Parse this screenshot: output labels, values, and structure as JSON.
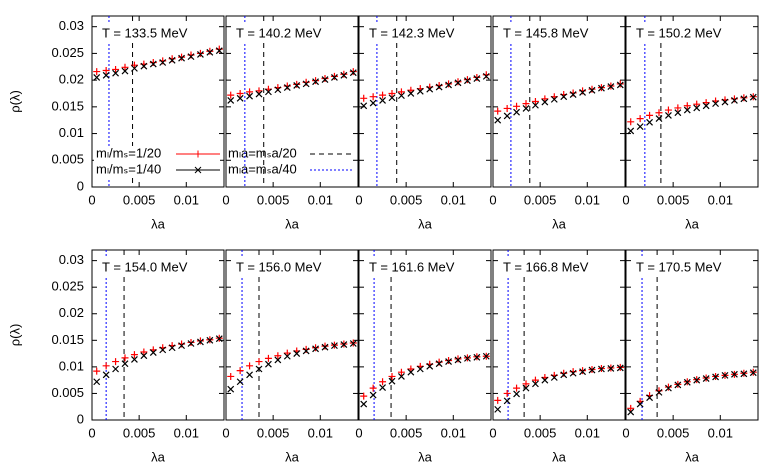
{
  "chart_data": [
    {
      "type": "scatter",
      "title": "T = 133.5 MeV",
      "xlabel": "λa",
      "ylabel": "ρ(λ)",
      "x": [
        0.0005,
        0.0015,
        0.0025,
        0.0035,
        0.0045,
        0.0055,
        0.0065,
        0.0075,
        0.0085,
        0.0095,
        0.0105,
        0.0115,
        0.0125,
        0.0135
      ],
      "xlim": [
        0,
        0.014
      ],
      "ylim": [
        0,
        0.032
      ],
      "xticks": [
        0,
        0.005,
        0.01
      ],
      "yticks": [
        0,
        0.005,
        0.01,
        0.015,
        0.02,
        0.025,
        0.03
      ],
      "series": [
        {
          "name": "mₗ/mₛ=1/20",
          "color": "#ff0000",
          "marker": "plus",
          "values": [
            0.0216,
            0.0218,
            0.022,
            0.0224,
            0.0228,
            0.023,
            0.0233,
            0.0236,
            0.024,
            0.0243,
            0.0247,
            0.025,
            0.0254,
            0.0258
          ]
        },
        {
          "name": "mₗ/mₛ=1/40",
          "color": "#000000",
          "marker": "cross",
          "values": [
            0.0205,
            0.0209,
            0.0213,
            0.0217,
            0.0222,
            0.0226,
            0.023,
            0.0233,
            0.0237,
            0.0241,
            0.0244,
            0.0248,
            0.0252,
            0.0255
          ]
        }
      ],
      "vlines": [
        {
          "name": "mₗa=mₛa/20",
          "color": "#000000",
          "dash": "dashed",
          "value": 0.0043
        },
        {
          "name": "mₗa=mₛa/40",
          "color": "#0000ff",
          "dash": "dotted",
          "value": 0.0018
        }
      ]
    },
    {
      "type": "scatter",
      "title": "T = 140.2 MeV",
      "xlabel": "λa",
      "x": [
        0.0005,
        0.0015,
        0.0025,
        0.0035,
        0.0045,
        0.0055,
        0.0065,
        0.0075,
        0.0085,
        0.0095,
        0.0105,
        0.0115,
        0.0125,
        0.0135
      ],
      "xlim": [
        0,
        0.014
      ],
      "ylim": [
        0,
        0.032
      ],
      "xticks": [
        0,
        0.005,
        0.01
      ],
      "yticks": [
        0,
        0.005,
        0.01,
        0.015,
        0.02,
        0.025,
        0.03
      ],
      "series": [
        {
          "color": "#ff0000",
          "marker": "plus",
          "values": [
            0.0172,
            0.0175,
            0.0178,
            0.018,
            0.0183,
            0.0186,
            0.0189,
            0.0192,
            0.0196,
            0.0199,
            0.0203,
            0.0207,
            0.0211,
            0.0216
          ]
        },
        {
          "color": "#000000",
          "marker": "cross",
          "values": [
            0.0162,
            0.0166,
            0.017,
            0.0174,
            0.0178,
            0.0182,
            0.0186,
            0.019,
            0.0193,
            0.0197,
            0.0201,
            0.0205,
            0.0209,
            0.0214
          ]
        }
      ],
      "vlines": [
        {
          "color": "#000000",
          "dash": "dashed",
          "value": 0.004
        },
        {
          "color": "#0000ff",
          "dash": "dotted",
          "value": 0.002
        }
      ]
    },
    {
      "type": "scatter",
      "title": "T = 142.3 MeV",
      "xlabel": "λa",
      "x": [
        0.0005,
        0.0015,
        0.0025,
        0.0035,
        0.0045,
        0.0055,
        0.0065,
        0.0075,
        0.0085,
        0.0095,
        0.0105,
        0.0115,
        0.0125,
        0.0135
      ],
      "xlim": [
        0,
        0.014
      ],
      "ylim": [
        0,
        0.032
      ],
      "xticks": [
        0,
        0.005,
        0.01
      ],
      "yticks": [
        0,
        0.005,
        0.01,
        0.015,
        0.02,
        0.025,
        0.03
      ],
      "series": [
        {
          "color": "#ff0000",
          "marker": "plus",
          "values": [
            0.0166,
            0.0169,
            0.0172,
            0.0175,
            0.0178,
            0.0181,
            0.0184,
            0.0187,
            0.019,
            0.0193,
            0.0197,
            0.0201,
            0.0205,
            0.021
          ]
        },
        {
          "color": "#000000",
          "marker": "cross",
          "values": [
            0.0152,
            0.0157,
            0.0162,
            0.0167,
            0.0171,
            0.0175,
            0.0179,
            0.0183,
            0.0187,
            0.0191,
            0.0195,
            0.0199,
            0.0203,
            0.0207
          ]
        }
      ],
      "vlines": [
        {
          "color": "#000000",
          "dash": "dashed",
          "value": 0.004
        },
        {
          "color": "#0000ff",
          "dash": "dotted",
          "value": 0.0019
        }
      ]
    },
    {
      "type": "scatter",
      "title": "T = 145.8 MeV",
      "xlabel": "λa",
      "x": [
        0.0005,
        0.0015,
        0.0025,
        0.0035,
        0.0045,
        0.0055,
        0.0065,
        0.0075,
        0.0085,
        0.0095,
        0.0105,
        0.0115,
        0.0125,
        0.0135
      ],
      "xlim": [
        0,
        0.014
      ],
      "ylim": [
        0,
        0.032
      ],
      "xticks": [
        0,
        0.005,
        0.01
      ],
      "yticks": [
        0,
        0.005,
        0.01,
        0.015,
        0.02,
        0.025,
        0.03
      ],
      "series": [
        {
          "color": "#ff0000",
          "marker": "plus",
          "values": [
            0.0142,
            0.0147,
            0.0151,
            0.0156,
            0.016,
            0.0165,
            0.0169,
            0.0173,
            0.0176,
            0.018,
            0.0183,
            0.0186,
            0.0189,
            0.0193
          ]
        },
        {
          "color": "#000000",
          "marker": "cross",
          "values": [
            0.0125,
            0.0133,
            0.014,
            0.0147,
            0.0153,
            0.0159,
            0.0164,
            0.0169,
            0.0173,
            0.0177,
            0.0181,
            0.0185,
            0.0188,
            0.0191
          ]
        }
      ],
      "vlines": [
        {
          "color": "#000000",
          "dash": "dashed",
          "value": 0.0039
        },
        {
          "color": "#0000ff",
          "dash": "dotted",
          "value": 0.0019
        }
      ]
    },
    {
      "type": "scatter",
      "title": "T = 150.2 MeV",
      "xlabel": "λa",
      "x": [
        0.0005,
        0.0015,
        0.0025,
        0.0035,
        0.0045,
        0.0055,
        0.0065,
        0.0075,
        0.0085,
        0.0095,
        0.0105,
        0.0115,
        0.0125,
        0.0135
      ],
      "xlim": [
        0,
        0.014
      ],
      "ylim": [
        0,
        0.032
      ],
      "xticks": [
        0,
        0.005,
        0.01
      ],
      "yticks": [
        0,
        0.005,
        0.01,
        0.015,
        0.02,
        0.025,
        0.03
      ],
      "series": [
        {
          "color": "#ff0000",
          "marker": "plus",
          "values": [
            0.0122,
            0.0128,
            0.0134,
            0.0139,
            0.0144,
            0.0148,
            0.0152,
            0.0155,
            0.0158,
            0.0161,
            0.0163,
            0.0165,
            0.0167,
            0.0169
          ]
        },
        {
          "color": "#000000",
          "marker": "cross",
          "values": [
            0.0105,
            0.0113,
            0.0121,
            0.0128,
            0.0134,
            0.0139,
            0.0144,
            0.0148,
            0.0152,
            0.0156,
            0.0159,
            0.0162,
            0.0165,
            0.0168
          ]
        }
      ],
      "vlines": [
        {
          "color": "#000000",
          "dash": "dashed",
          "value": 0.0037
        },
        {
          "color": "#0000ff",
          "dash": "dotted",
          "value": 0.002
        }
      ]
    },
    {
      "type": "scatter",
      "title": "T = 154.0 MeV",
      "xlabel": "λa",
      "ylabel": "ρ(λ)",
      "x": [
        0.0005,
        0.0015,
        0.0025,
        0.0035,
        0.0045,
        0.0055,
        0.0065,
        0.0075,
        0.0085,
        0.0095,
        0.0105,
        0.0115,
        0.0125,
        0.0135
      ],
      "xlim": [
        0,
        0.014
      ],
      "ylim": [
        0,
        0.032
      ],
      "xticks": [
        0,
        0.005,
        0.01
      ],
      "yticks": [
        0,
        0.005,
        0.01,
        0.015,
        0.02,
        0.025,
        0.03
      ],
      "series": [
        {
          "color": "#ff0000",
          "marker": "plus",
          "values": [
            0.0092,
            0.0102,
            0.011,
            0.0117,
            0.0123,
            0.0128,
            0.0132,
            0.0136,
            0.014,
            0.0143,
            0.0146,
            0.0149,
            0.0151,
            0.0154
          ]
        },
        {
          "color": "#000000",
          "marker": "cross",
          "values": [
            0.0072,
            0.0085,
            0.0096,
            0.0106,
            0.0114,
            0.0121,
            0.0127,
            0.0132,
            0.0136,
            0.014,
            0.0144,
            0.0147,
            0.015,
            0.0153
          ]
        }
      ],
      "vlines": [
        {
          "color": "#000000",
          "dash": "dashed",
          "value": 0.0034
        },
        {
          "color": "#0000ff",
          "dash": "dotted",
          "value": 0.0015
        }
      ]
    },
    {
      "type": "scatter",
      "title": "T = 156.0 MeV",
      "xlabel": "λa",
      "x": [
        0.0005,
        0.0015,
        0.0025,
        0.0035,
        0.0045,
        0.0055,
        0.0065,
        0.0075,
        0.0085,
        0.0095,
        0.0105,
        0.0115,
        0.0125,
        0.0135
      ],
      "xlim": [
        0,
        0.014
      ],
      "ylim": [
        0,
        0.032
      ],
      "xticks": [
        0,
        0.005,
        0.01
      ],
      "yticks": [
        0,
        0.005,
        0.01,
        0.015,
        0.02,
        0.025,
        0.03
      ],
      "series": [
        {
          "color": "#ff0000",
          "marker": "plus",
          "values": [
            0.0082,
            0.0093,
            0.0102,
            0.011,
            0.0116,
            0.0121,
            0.0126,
            0.013,
            0.0133,
            0.0136,
            0.0139,
            0.0141,
            0.0143,
            0.0145
          ]
        },
        {
          "color": "#000000",
          "marker": "cross",
          "values": [
            0.0058,
            0.0072,
            0.0085,
            0.0096,
            0.0105,
            0.0113,
            0.012,
            0.0125,
            0.013,
            0.0134,
            0.0137,
            0.014,
            0.0142,
            0.0144
          ]
        }
      ],
      "vlines": [
        {
          "color": "#000000",
          "dash": "dashed",
          "value": 0.0035
        },
        {
          "color": "#0000ff",
          "dash": "dotted",
          "value": 0.0017
        }
      ]
    },
    {
      "type": "scatter",
      "title": "T = 161.6 MeV",
      "xlabel": "λa",
      "x": [
        0.0005,
        0.0015,
        0.0025,
        0.0035,
        0.0045,
        0.0055,
        0.0065,
        0.0075,
        0.0085,
        0.0095,
        0.0105,
        0.0115,
        0.0125,
        0.0135
      ],
      "xlim": [
        0,
        0.014
      ],
      "ylim": [
        0,
        0.032
      ],
      "xticks": [
        0,
        0.005,
        0.01
      ],
      "yticks": [
        0,
        0.005,
        0.01,
        0.015,
        0.02,
        0.025,
        0.03
      ],
      "series": [
        {
          "color": "#ff0000",
          "marker": "plus",
          "values": [
            0.0045,
            0.006,
            0.0072,
            0.0082,
            0.009,
            0.0096,
            0.0101,
            0.0105,
            0.0109,
            0.0112,
            0.0115,
            0.0117,
            0.0119,
            0.012
          ]
        },
        {
          "color": "#000000",
          "marker": "cross",
          "values": [
            0.003,
            0.0047,
            0.0061,
            0.0073,
            0.0082,
            0.009,
            0.0096,
            0.0101,
            0.0106,
            0.011,
            0.0113,
            0.0116,
            0.0118,
            0.012
          ]
        }
      ],
      "vlines": [
        {
          "color": "#000000",
          "dash": "dashed",
          "value": 0.0034
        },
        {
          "color": "#0000ff",
          "dash": "dotted",
          "value": 0.0016
        }
      ]
    },
    {
      "type": "scatter",
      "title": "T = 166.8 MeV",
      "xlabel": "λa",
      "x": [
        0.0005,
        0.0015,
        0.0025,
        0.0035,
        0.0045,
        0.0055,
        0.0065,
        0.0075,
        0.0085,
        0.0095,
        0.0105,
        0.0115,
        0.0125,
        0.0135
      ],
      "xlim": [
        0,
        0.014
      ],
      "ylim": [
        0,
        0.032
      ],
      "xticks": [
        0,
        0.005,
        0.01
      ],
      "yticks": [
        0,
        0.005,
        0.01,
        0.015,
        0.02,
        0.025,
        0.03
      ],
      "series": [
        {
          "color": "#ff0000",
          "marker": "plus",
          "values": [
            0.0037,
            0.005,
            0.006,
            0.0068,
            0.0075,
            0.008,
            0.0084,
            0.0088,
            0.0091,
            0.0093,
            0.0095,
            0.0097,
            0.0098,
            0.0099
          ]
        },
        {
          "color": "#000000",
          "marker": "cross",
          "values": [
            0.002,
            0.0036,
            0.0049,
            0.006,
            0.0068,
            0.0075,
            0.008,
            0.0085,
            0.0088,
            0.0091,
            0.0094,
            0.0096,
            0.0097,
            0.0098
          ]
        }
      ],
      "vlines": [
        {
          "color": "#000000",
          "dash": "dashed",
          "value": 0.0033
        },
        {
          "color": "#0000ff",
          "dash": "dotted",
          "value": 0.0016
        }
      ]
    },
    {
      "type": "scatter",
      "title": "T = 170.5 MeV",
      "xlabel": "λa",
      "x": [
        0.0005,
        0.0015,
        0.0025,
        0.0035,
        0.0045,
        0.0055,
        0.0065,
        0.0075,
        0.0085,
        0.0095,
        0.0105,
        0.0115,
        0.0125,
        0.0135
      ],
      "xlim": [
        0,
        0.014
      ],
      "ylim": [
        0,
        0.032
      ],
      "xticks": [
        0,
        0.005,
        0.01
      ],
      "yticks": [
        0,
        0.005,
        0.01,
        0.015,
        0.02,
        0.025,
        0.03
      ],
      "series": [
        {
          "color": "#ff0000",
          "marker": "plus",
          "values": [
            0.0022,
            0.0035,
            0.0046,
            0.0055,
            0.0062,
            0.0067,
            0.0072,
            0.0076,
            0.0079,
            0.0082,
            0.0084,
            0.0086,
            0.0088,
            0.009
          ]
        },
        {
          "color": "#000000",
          "marker": "cross",
          "values": [
            0.0015,
            0.003,
            0.0042,
            0.0052,
            0.006,
            0.0066,
            0.0071,
            0.0075,
            0.0078,
            0.0081,
            0.0084,
            0.0086,
            0.0087,
            0.0089
          ]
        }
      ],
      "vlines": [
        {
          "color": "#000000",
          "dash": "dashed",
          "value": 0.0033
        },
        {
          "color": "#0000ff",
          "dash": "dotted",
          "value": 0.0017
        }
      ]
    }
  ]
}
